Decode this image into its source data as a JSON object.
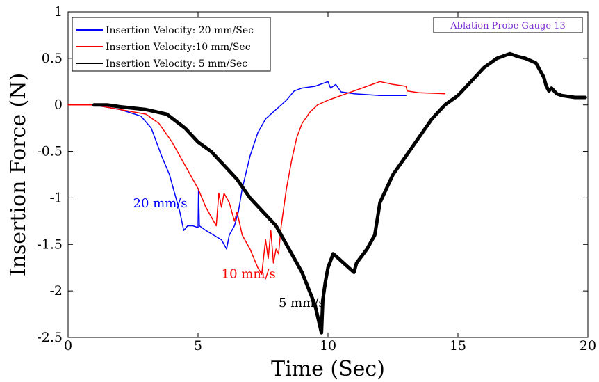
{
  "chart_data": {
    "type": "line",
    "xlabel": "Time (Sec)",
    "ylabel": "Insertion Force (N)",
    "xlim": [
      0,
      20
    ],
    "ylim": [
      -2.5,
      1
    ],
    "xticks": [
      "0",
      "5",
      "10",
      "15",
      "20"
    ],
    "yticks": [
      "1",
      "0.5",
      "0",
      "-0.5",
      "-1",
      "-1.5",
      "-2",
      "-2.5"
    ],
    "grid": false,
    "legend_position": "top-left",
    "plot_title": "Ablation Probe Gauge 13",
    "plot_title_color": "#7b2fd6",
    "series": [
      {
        "name": "Insertion Velocity: 20 mm/Sec",
        "color": "#0000ff",
        "linewidth": 1.5,
        "x": [
          0,
          1.0,
          2.0,
          2.8,
          3.2,
          3.6,
          3.9,
          4.1,
          4.3,
          4.45,
          4.6,
          4.8,
          5.0,
          5.02,
          5.05,
          5.3,
          5.6,
          5.9,
          6.1,
          6.2,
          6.4,
          6.55,
          6.7,
          7.0,
          7.3,
          7.6,
          8.0,
          8.4,
          8.7,
          9.0,
          9.5,
          10.0,
          10.1,
          10.3,
          10.5,
          11.0,
          12.0,
          13.0
        ],
        "y": [
          0,
          0,
          -0.05,
          -0.12,
          -0.25,
          -0.55,
          -0.75,
          -0.95,
          -1.15,
          -1.35,
          -1.3,
          -1.3,
          -1.32,
          -0.9,
          -1.3,
          -1.35,
          -1.4,
          -1.45,
          -1.55,
          -1.4,
          -1.3,
          -1.15,
          -0.9,
          -0.55,
          -0.3,
          -0.15,
          -0.05,
          0.05,
          0.15,
          0.18,
          0.2,
          0.25,
          0.18,
          0.22,
          0.14,
          0.12,
          0.1,
          0.1
        ]
      },
      {
        "name": "Insertion Velocity:10 mm/Sec",
        "color": "#ff0000",
        "linewidth": 1.5,
        "x": [
          0,
          1.0,
          2.0,
          3.0,
          3.5,
          4.0,
          4.5,
          5.0,
          5.3,
          5.5,
          5.7,
          5.8,
          5.9,
          6.0,
          6.2,
          6.4,
          6.5,
          6.7,
          7.0,
          7.3,
          7.45,
          7.6,
          7.7,
          7.8,
          7.9,
          8.0,
          8.1,
          8.2,
          8.4,
          8.6,
          8.8,
          9.0,
          9.3,
          9.6,
          10.0,
          10.5,
          11.0,
          11.5,
          12.0,
          12.5,
          13.0,
          13.05,
          13.5,
          14.5
        ],
        "y": [
          0,
          0,
          -0.05,
          -0.1,
          -0.2,
          -0.4,
          -0.65,
          -0.9,
          -1.1,
          -1.2,
          -1.3,
          -0.95,
          -1.1,
          -0.95,
          -1.05,
          -1.25,
          -1.15,
          -1.4,
          -1.55,
          -1.75,
          -1.82,
          -1.45,
          -1.65,
          -1.35,
          -1.7,
          -1.55,
          -1.6,
          -1.3,
          -0.9,
          -0.6,
          -0.35,
          -0.2,
          -0.08,
          0.0,
          0.05,
          0.1,
          0.15,
          0.2,
          0.25,
          0.22,
          0.2,
          0.15,
          0.13,
          0.12
        ]
      },
      {
        "name": "Insertion Velocity: 5 mm/Sec",
        "color": "#000000",
        "linewidth": 5,
        "x": [
          1.0,
          1.5,
          2.0,
          3.0,
          3.8,
          4.5,
          5.0,
          5.5,
          6.0,
          6.5,
          7.0,
          7.5,
          8.0,
          8.5,
          9.0,
          9.5,
          9.75,
          9.8,
          9.9,
          10.0,
          10.2,
          10.4,
          10.6,
          10.8,
          11.0,
          11.1,
          11.5,
          11.8,
          12.0,
          12.5,
          13.0,
          13.5,
          14.0,
          14.5,
          15.0,
          15.5,
          16.0,
          16.5,
          17.0,
          17.3,
          17.6,
          18.0,
          18.3,
          18.4,
          18.5,
          18.6,
          18.8,
          19.0,
          19.5,
          19.9
        ],
        "y": [
          0.0,
          0.0,
          -0.02,
          -0.05,
          -0.1,
          -0.25,
          -0.4,
          -0.5,
          -0.65,
          -0.8,
          -1.0,
          -1.15,
          -1.3,
          -1.55,
          -1.8,
          -2.15,
          -2.45,
          -2.1,
          -1.9,
          -1.75,
          -1.6,
          -1.65,
          -1.7,
          -1.75,
          -1.8,
          -1.7,
          -1.55,
          -1.4,
          -1.05,
          -0.75,
          -0.55,
          -0.35,
          -0.15,
          0.0,
          0.1,
          0.25,
          0.4,
          0.5,
          0.55,
          0.52,
          0.5,
          0.45,
          0.3,
          0.2,
          0.15,
          0.18,
          0.12,
          0.1,
          0.08,
          0.08
        ]
      }
    ],
    "annotations": [
      {
        "text": "20 mm/s",
        "x": 2.5,
        "y": -1.1,
        "color": "#0000ff"
      },
      {
        "text": "10 mm/s",
        "x": 5.9,
        "y": -1.86,
        "color": "#ff0000"
      },
      {
        "text": "5 mm/s",
        "x": 8.1,
        "y": -2.17,
        "color": "#000000"
      }
    ]
  }
}
